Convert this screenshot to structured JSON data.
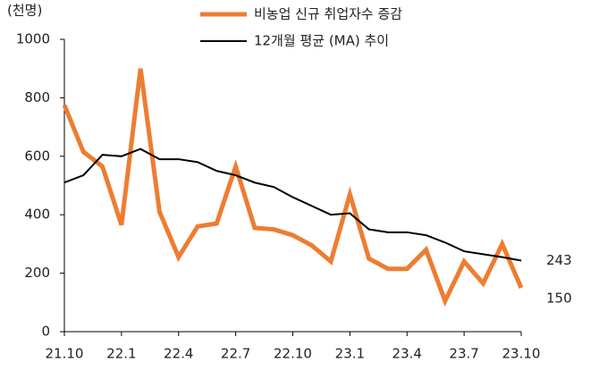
{
  "chart_data": {
    "type": "line",
    "y_label": "(천명)",
    "categories": [
      "21.10",
      null,
      null,
      "22.1",
      null,
      null,
      "22.4",
      null,
      null,
      "22.7",
      null,
      null,
      "22.10",
      null,
      null,
      "23.1",
      null,
      null,
      "23.4",
      null,
      null,
      "23.7",
      null,
      null,
      "23.10"
    ],
    "series": [
      {
        "name": "비농업 신규 취업자수 증감",
        "color": "#ed7d31",
        "values": [
          775,
          615,
          565,
          365,
          900,
          410,
          255,
          360,
          370,
          565,
          355,
          350,
          330,
          295,
          240,
          470,
          250,
          215,
          215,
          280,
          105,
          240,
          165,
          300,
          150
        ]
      },
      {
        "name": "12개월 평균 (MA) 추이",
        "color": "#000000",
        "values": [
          510,
          535,
          605,
          600,
          625,
          590,
          590,
          580,
          550,
          535,
          510,
          495,
          460,
          430,
          400,
          405,
          350,
          340,
          340,
          330,
          305,
          275,
          265,
          255,
          243
        ]
      }
    ],
    "ylim": [
      0,
      1000
    ],
    "yticks": [
      0,
      200,
      400,
      600,
      800,
      1000
    ]
  }
}
